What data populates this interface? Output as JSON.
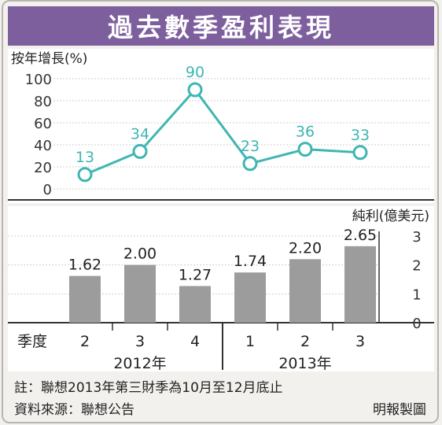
{
  "title": "過去數季盈利表現",
  "chart_data": [
    {
      "type": "line",
      "ylabel": "按年增長(%)",
      "ylim": [
        0,
        100
      ],
      "yticks": [
        0,
        20,
        40,
        60,
        80,
        100
      ],
      "grid": true,
      "series": [
        {
          "values": [
            13,
            34,
            90,
            23,
            36,
            33
          ]
        }
      ],
      "color": "#3fb6b2"
    },
    {
      "type": "bar",
      "ylabel": "純利(億美元)",
      "ylim": [
        0,
        3
      ],
      "yticks": [
        0,
        1,
        2,
        3
      ],
      "grid": true,
      "categories_label": "季度",
      "categories": [
        "2",
        "3",
        "4",
        "1",
        "2",
        "3"
      ],
      "groups": [
        {
          "label": "2012年",
          "count": 3
        },
        {
          "label": "2013年",
          "count": 3
        }
      ],
      "series": [
        {
          "values": [
            1.62,
            2.0,
            1.27,
            1.74,
            2.2,
            2.65
          ]
        }
      ],
      "value_labels": [
        "1.62",
        "2.00",
        "1.27",
        "1.74",
        "2.20",
        "2.65"
      ],
      "color": "#9c9c9c"
    }
  ],
  "footnote": "註：聯想2013年第三財季為10月至12月底止",
  "source": "資料來源：聯想公告",
  "credit": "明報製圖"
}
